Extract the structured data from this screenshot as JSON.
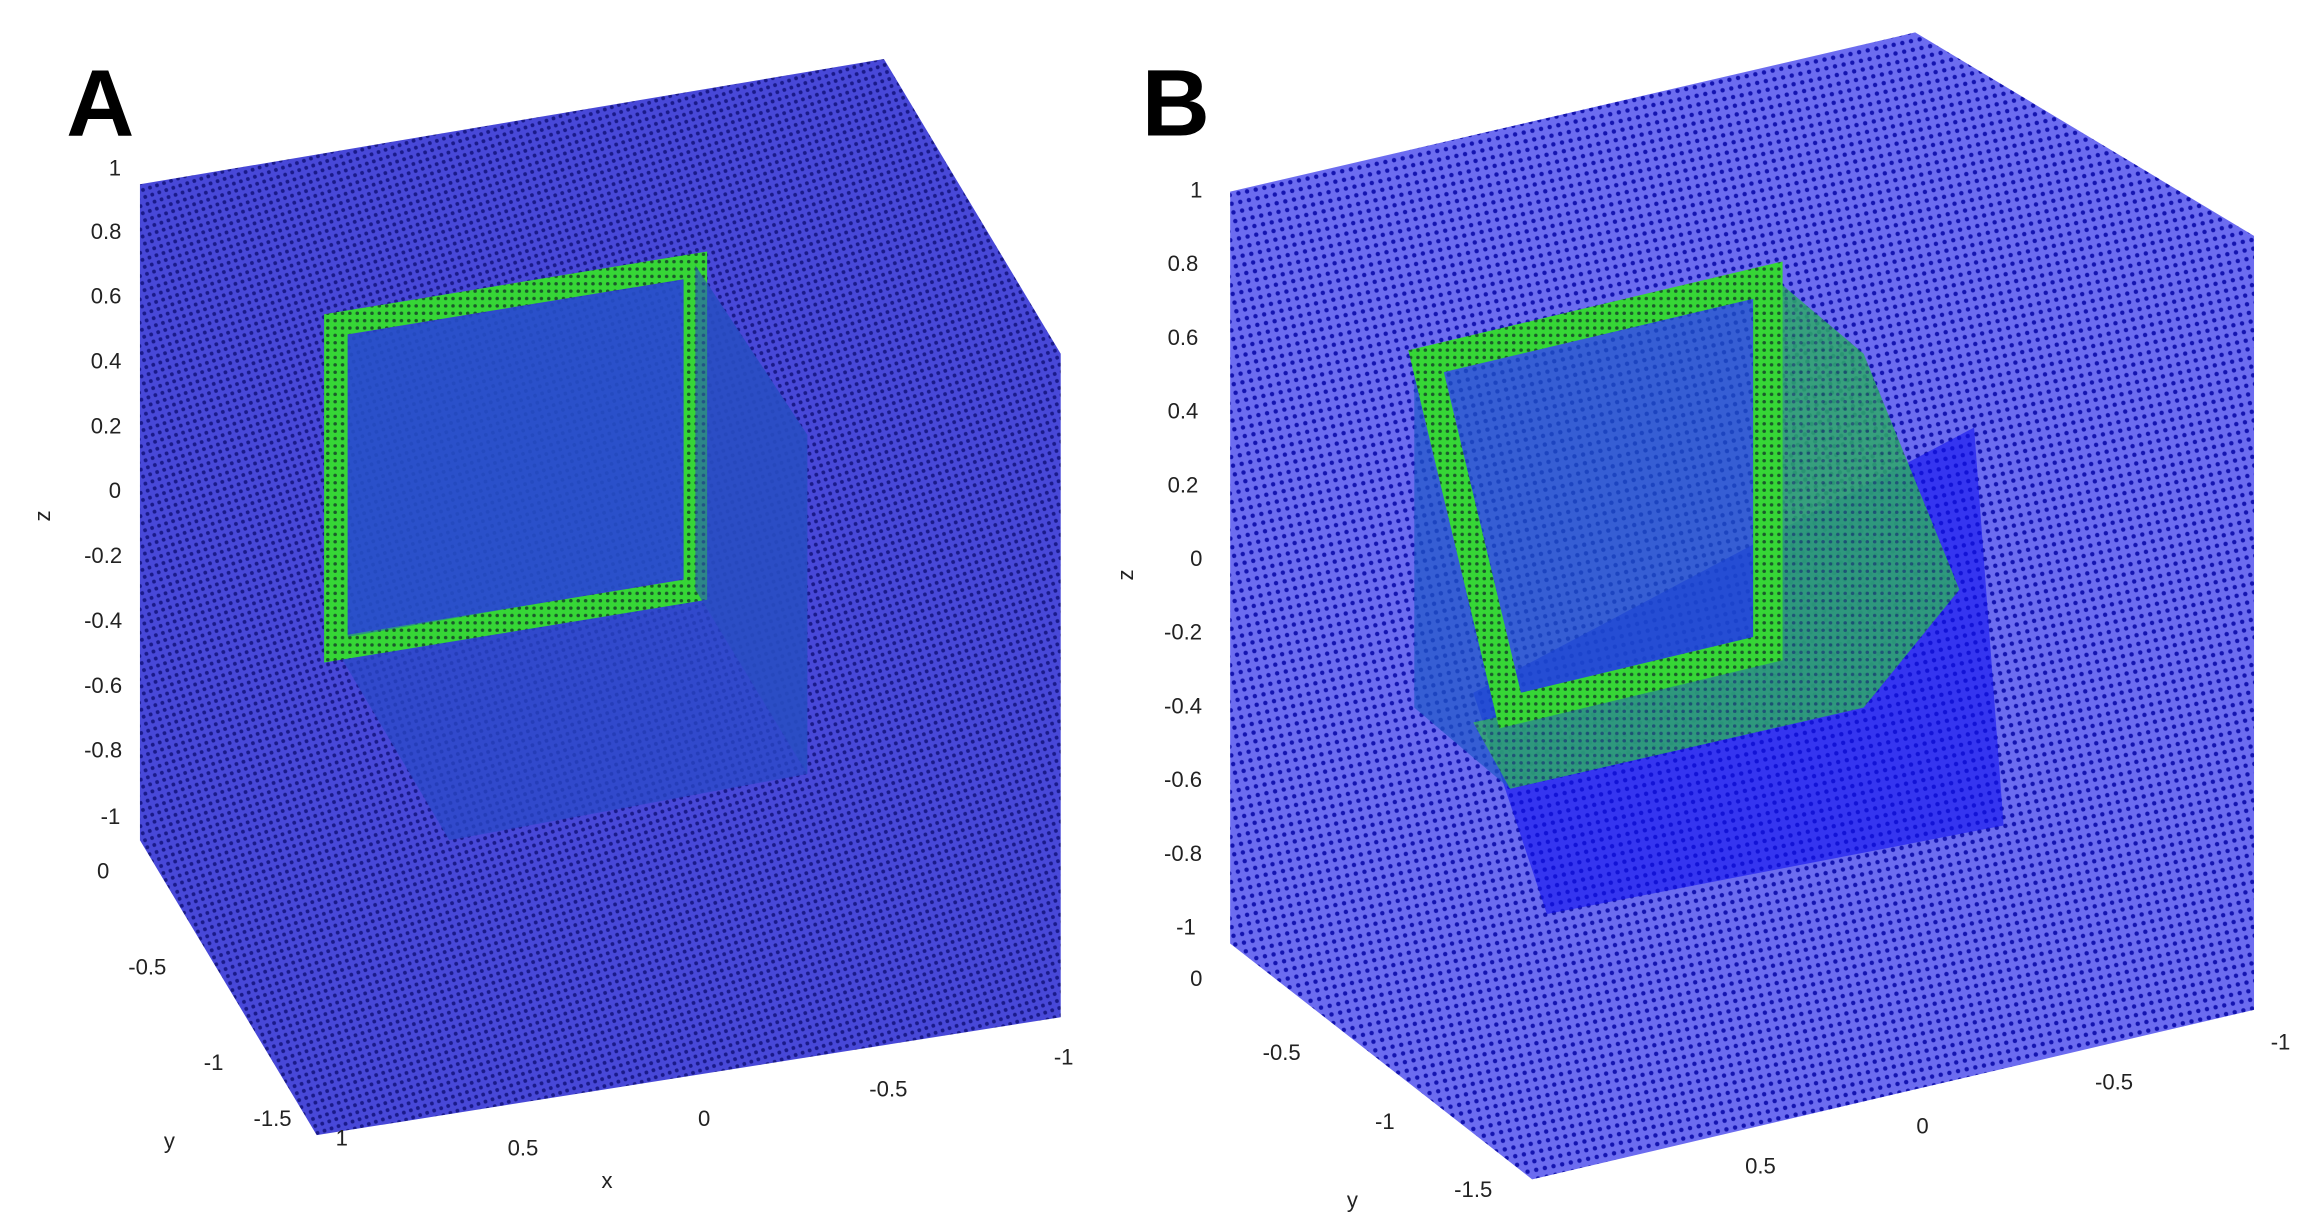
{
  "panels": [
    {
      "label": "A",
      "z_label": "z",
      "y_label": "y",
      "x_label": "x",
      "z_ticks": [
        "1",
        "0.8",
        "0.6",
        "0.4",
        "0.2",
        "0",
        "-0.2",
        "-0.4",
        "-0.6",
        "-0.8",
        "-1"
      ],
      "y_ticks": [
        "0",
        "-0.5",
        "-1",
        "-1.5"
      ],
      "x_ticks": [
        "1",
        "0.5",
        "0",
        "-0.5",
        "-1"
      ]
    },
    {
      "label": "B",
      "z_label": "z",
      "y_label": "y",
      "x_label": null,
      "z_ticks": [
        "1",
        "0.8",
        "0.6",
        "0.4",
        "0.2",
        "0",
        "-0.2",
        "-0.4",
        "-0.6",
        "-0.8",
        "-1"
      ],
      "y_ticks": [
        "0",
        "-0.5",
        "-1",
        "-1.5"
      ],
      "x_ticks": [
        "0.5",
        "0",
        "-0.5",
        "-1"
      ]
    }
  ]
}
